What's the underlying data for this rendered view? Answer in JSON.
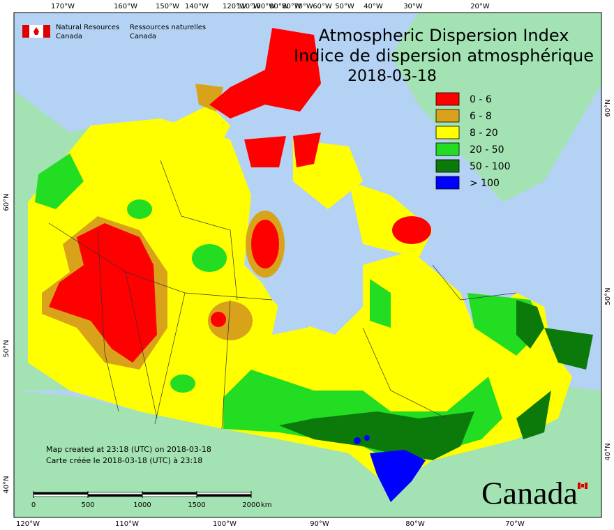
{
  "header": {
    "agency_en": [
      "Natural Resources",
      "Canada"
    ],
    "agency_fr": [
      "Ressources naturelles",
      "Canada"
    ]
  },
  "title": {
    "lines": [
      "Atmospheric Dispersion Index",
      "Indice de dispersion atmosphérique"
    ],
    "date": "2018-03-18"
  },
  "legend": [
    {
      "label": "0 - 6",
      "color": "#ff0000"
    },
    {
      "label": "6 - 8",
      "color": "#d9a21b"
    },
    {
      "label": "8 - 20",
      "color": "#ffff00"
    },
    {
      "label": "20 - 50",
      "color": "#22dd22"
    },
    {
      "label": "50 - 100",
      "color": "#0b7a0b"
    },
    {
      "label": "> 100",
      "color": "#0000ff"
    }
  ],
  "graticule": {
    "top": [
      "170°W",
      "160°W",
      "150°W",
      "140°W",
      "120°W",
      "110°W",
      "100°W",
      "90°W",
      "80°W",
      "70°W",
      "60°W",
      "50°W",
      "40°W",
      "30°W",
      "20°W"
    ],
    "bottom": [
      "120°W",
      "110°W",
      "100°W",
      "90°W",
      "80°W",
      "70°W"
    ],
    "left": [
      "60°N",
      "50°N",
      "40°N"
    ],
    "right": [
      "60°N",
      "50°N",
      "40°N"
    ]
  },
  "footnote": [
    "Map created at 23:18 (UTC) on 2018-03-18",
    "Carte créée le 2018-03-18 (UTC) à 23:18"
  ],
  "scale": {
    "ticks": [
      0,
      500,
      1000,
      1500,
      2000
    ],
    "unit": "km"
  },
  "wordmark": "Canada"
}
